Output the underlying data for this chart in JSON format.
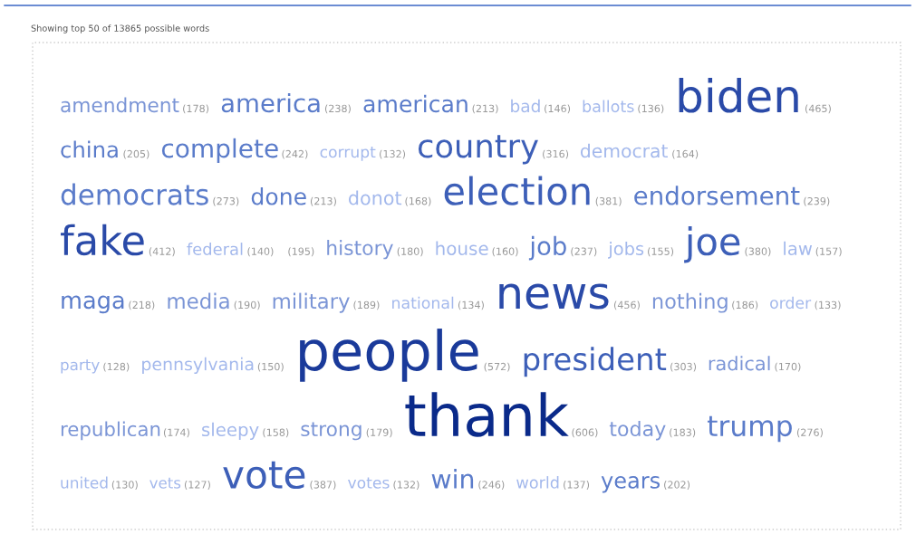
{
  "chart_data": {
    "type": "other",
    "title": "Showing top 50 of 13865 possible words",
    "categories": [
      "amendment",
      "america",
      "american",
      "bad",
      "ballots",
      "biden",
      "china",
      "complete",
      "corrupt",
      "country",
      "democrat",
      "democrats",
      "done",
      "donot",
      "election",
      "endorsement",
      "fake",
      "federal",
      null,
      "history",
      "house",
      "job",
      "jobs",
      "joe",
      "law",
      "maga",
      "media",
      "military",
      "national",
      "news",
      "nothing",
      "order",
      "party",
      "pennsylvania",
      "people",
      "president",
      "radical",
      "republican",
      "sleepy",
      "strong",
      "thank",
      "today",
      "trump",
      "united",
      "vets",
      "vote",
      "votes",
      "win",
      "world",
      "years"
    ],
    "values": [
      178,
      238,
      213,
      146,
      136,
      465,
      205,
      242,
      132,
      316,
      164,
      273,
      213,
      168,
      381,
      239,
      412,
      140,
      195,
      180,
      160,
      237,
      155,
      380,
      157,
      218,
      190,
      189,
      134,
      456,
      186,
      133,
      128,
      150,
      572,
      303,
      170,
      174,
      158,
      179,
      606,
      183,
      276,
      130,
      127,
      387,
      132,
      246,
      137,
      202
    ],
    "colors": [
      "#7b95d6",
      "#5b7cca",
      "#5b7cca",
      "#a3b8ec",
      "#a3b8ec",
      "#2a4aa8",
      "#5b7cca",
      "#5b7cca",
      "#a3b8ec",
      "#3d5fb8",
      "#a3b8ec",
      "#5b7cca",
      "#5b7cca",
      "#a3b8ec",
      "#3d5fb8",
      "#5b7cca",
      "#2a4aa8",
      "#a3b8ec",
      "#7b95d6",
      "#7b95d6",
      "#a3b8ec",
      "#5b7cca",
      "#a3b8ec",
      "#3d5fb8",
      "#a3b8ec",
      "#5b7cca",
      "#7b95d6",
      "#7b95d6",
      "#a3b8ec",
      "#2a4aa8",
      "#7b95d6",
      "#a3b8ec",
      "#a3b8ec",
      "#a3b8ec",
      "#1a3a9a",
      "#3d5fb8",
      "#7b95d6",
      "#7b95d6",
      "#a3b8ec",
      "#7b95d6",
      "#0a2a8a",
      "#7b95d6",
      "#5b7cca",
      "#a3b8ec",
      "#a3b8ec",
      "#3d5fb8",
      "#a3b8ec",
      "#5b7cca",
      "#a3b8ec",
      "#5b7cca"
    ],
    "value_labels": [
      "(178)",
      "(238)",
      "(213)",
      "(146)",
      "(136)",
      "(465)",
      "(205)",
      "(242)",
      "(132)",
      "(316)",
      "(164)",
      "(273)",
      "(213)",
      "(168)",
      "(381)",
      "(239)",
      "(412)",
      "(140)",
      "(195)",
      "(180)",
      "(160)",
      "(237)",
      "(155)",
      "(380)",
      "(157)",
      "(218)",
      "(190)",
      "(189)",
      "(134)",
      "(456)",
      "(186)",
      "(133)",
      "(128)",
      "(150)",
      "(572)",
      "(303)",
      "(170)",
      "(174)",
      "(158)",
      "(179)",
      "(606)",
      "(183)",
      "(276)",
      "(130)",
      "(127)",
      "(387)",
      "(132)",
      "(246)",
      "(137)",
      "(202)"
    ]
  }
}
